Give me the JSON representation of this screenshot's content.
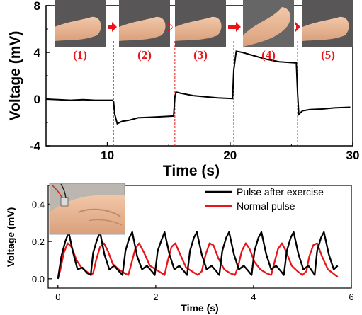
{
  "chart_data": [
    {
      "type": "line",
      "xlabel": "Time (s)",
      "ylabel": "Voltage (mV)",
      "xlim": [
        5,
        30
      ],
      "ylim": [
        -4,
        8
      ],
      "xticks": [
        "10",
        "20",
        "30"
      ],
      "yticks": [
        "-4",
        "0",
        "4",
        "8"
      ],
      "step_labels": [
        "(1)",
        "(2)",
        "(3)",
        "(4)",
        "(5)"
      ],
      "transition_times": [
        10.5,
        15.5,
        20.3,
        25.5
      ],
      "series": [
        {
          "color": "#000000",
          "points": [
            [
              5,
              0
            ],
            [
              6,
              -0.05
            ],
            [
              7,
              -0.1
            ],
            [
              8,
              -0.05
            ],
            [
              9,
              -0.1
            ],
            [
              10.4,
              -0.1
            ],
            [
              10.5,
              -0.2
            ],
            [
              10.6,
              -1.3
            ],
            [
              10.8,
              -2.1
            ],
            [
              11.2,
              -1.9
            ],
            [
              11.8,
              -1.8
            ],
            [
              12.5,
              -1.6
            ],
            [
              13.5,
              -1.55
            ],
            [
              14.5,
              -1.5
            ],
            [
              15.4,
              -1.45
            ],
            [
              15.5,
              0.2
            ],
            [
              15.6,
              0.6
            ],
            [
              16.0,
              0.5
            ],
            [
              17.0,
              0.3
            ],
            [
              18.0,
              0.2
            ],
            [
              19.0,
              0.1
            ],
            [
              20.2,
              0.05
            ],
            [
              20.3,
              2.5
            ],
            [
              20.5,
              4.1
            ],
            [
              21.0,
              4.0
            ],
            [
              22.0,
              3.7
            ],
            [
              23.0,
              3.4
            ],
            [
              24.0,
              3.2
            ],
            [
              25.4,
              3.1
            ],
            [
              25.5,
              0.5
            ],
            [
              25.6,
              -1.3
            ],
            [
              25.9,
              -1.0
            ],
            [
              26.5,
              -0.9
            ],
            [
              27.5,
              -0.85
            ],
            [
              28.5,
              -0.75
            ],
            [
              29.8,
              -0.7
            ]
          ]
        }
      ]
    },
    {
      "type": "line",
      "xlabel": "Time (s)",
      "ylabel": "Voltage (mV)",
      "xlim": [
        -0.2,
        6
      ],
      "ylim": [
        -0.05,
        0.5
      ],
      "xticks": [
        "0",
        "2",
        "4",
        "6"
      ],
      "yticks": [
        "0.0",
        "0.2",
        "0.4"
      ],
      "inset_image": "wrist pulse sensor photo",
      "series": [
        {
          "name": "Pulse after exercise",
          "color": "#000000",
          "points": [
            [
              0,
              0.0
            ],
            [
              0.07,
              0.12
            ],
            [
              0.15,
              0.2
            ],
            [
              0.22,
              0.25
            ],
            [
              0.3,
              0.15
            ],
            [
              0.4,
              0.05
            ],
            [
              0.5,
              0.06
            ],
            [
              0.6,
              0.03
            ],
            [
              0.67,
              0.02
            ],
            [
              0.72,
              0.14
            ],
            [
              0.8,
              0.21
            ],
            [
              0.86,
              0.25
            ],
            [
              0.95,
              0.13
            ],
            [
              1.05,
              0.05
            ],
            [
              1.15,
              0.07
            ],
            [
              1.25,
              0.04
            ],
            [
              1.32,
              0.02
            ],
            [
              1.38,
              0.15
            ],
            [
              1.46,
              0.22
            ],
            [
              1.52,
              0.25
            ],
            [
              1.62,
              0.12
            ],
            [
              1.72,
              0.05
            ],
            [
              1.82,
              0.07
            ],
            [
              1.92,
              0.04
            ],
            [
              1.98,
              0.02
            ],
            [
              2.04,
              0.15
            ],
            [
              2.12,
              0.21
            ],
            [
              2.18,
              0.25
            ],
            [
              2.28,
              0.13
            ],
            [
              2.38,
              0.05
            ],
            [
              2.48,
              0.07
            ],
            [
              2.58,
              0.04
            ],
            [
              2.64,
              0.02
            ],
            [
              2.7,
              0.15
            ],
            [
              2.78,
              0.22
            ],
            [
              2.84,
              0.25
            ],
            [
              2.94,
              0.13
            ],
            [
              3.04,
              0.05
            ],
            [
              3.14,
              0.07
            ],
            [
              3.24,
              0.04
            ],
            [
              3.3,
              0.02
            ],
            [
              3.36,
              0.15
            ],
            [
              3.44,
              0.22
            ],
            [
              3.5,
              0.25
            ],
            [
              3.6,
              0.13
            ],
            [
              3.7,
              0.05
            ],
            [
              3.8,
              0.07
            ],
            [
              3.9,
              0.04
            ],
            [
              3.96,
              0.02
            ],
            [
              4.02,
              0.15
            ],
            [
              4.1,
              0.22
            ],
            [
              4.16,
              0.25
            ],
            [
              4.26,
              0.13
            ],
            [
              4.36,
              0.05
            ],
            [
              4.46,
              0.07
            ],
            [
              4.56,
              0.04
            ],
            [
              4.62,
              0.02
            ],
            [
              4.68,
              0.15
            ],
            [
              4.76,
              0.22
            ],
            [
              4.82,
              0.25
            ],
            [
              4.92,
              0.13
            ],
            [
              5.02,
              0.05
            ],
            [
              5.12,
              0.07
            ],
            [
              5.2,
              0.04
            ],
            [
              5.25,
              0.02
            ],
            [
              5.3,
              0.15
            ],
            [
              5.38,
              0.22
            ],
            [
              5.44,
              0.25
            ],
            [
              5.54,
              0.13
            ],
            [
              5.64,
              0.05
            ],
            [
              5.72,
              0.07
            ]
          ]
        },
        {
          "name": "Normal pulse",
          "color": "#e8161b",
          "points": [
            [
              0,
              0.0
            ],
            [
              0.05,
              0.05
            ],
            [
              0.12,
              0.14
            ],
            [
              0.2,
              0.19
            ],
            [
              0.28,
              0.17
            ],
            [
              0.38,
              0.1
            ],
            [
              0.48,
              0.06
            ],
            [
              0.58,
              0.04
            ],
            [
              0.68,
              0.02
            ],
            [
              0.72,
              0.03
            ],
            [
              0.78,
              0.1
            ],
            [
              0.86,
              0.17
            ],
            [
              0.94,
              0.19
            ],
            [
              1.02,
              0.15
            ],
            [
              1.12,
              0.08
            ],
            [
              1.24,
              0.05
            ],
            [
              1.36,
              0.03
            ],
            [
              1.44,
              0.02
            ],
            [
              1.5,
              0.08
            ],
            [
              1.58,
              0.16
            ],
            [
              1.66,
              0.19
            ],
            [
              1.76,
              0.14
            ],
            [
              1.88,
              0.07
            ],
            [
              2.0,
              0.05
            ],
            [
              2.12,
              0.03
            ],
            [
              2.18,
              0.02
            ],
            [
              2.24,
              0.09
            ],
            [
              2.32,
              0.17
            ],
            [
              2.4,
              0.19
            ],
            [
              2.5,
              0.13
            ],
            [
              2.62,
              0.06
            ],
            [
              2.74,
              0.04
            ],
            [
              2.86,
              0.02
            ],
            [
              2.94,
              0.04
            ],
            [
              3.02,
              0.13
            ],
            [
              3.1,
              0.19
            ],
            [
              3.18,
              0.18
            ],
            [
              3.28,
              0.11
            ],
            [
              3.4,
              0.05
            ],
            [
              3.52,
              0.03
            ],
            [
              3.62,
              0.02
            ],
            [
              3.68,
              0.06
            ],
            [
              3.76,
              0.15
            ],
            [
              3.84,
              0.19
            ],
            [
              3.92,
              0.16
            ],
            [
              4.02,
              0.09
            ],
            [
              4.14,
              0.05
            ],
            [
              4.26,
              0.03
            ],
            [
              4.36,
              0.02
            ],
            [
              4.42,
              0.08
            ],
            [
              4.5,
              0.16
            ],
            [
              4.58,
              0.19
            ],
            [
              4.66,
              0.15
            ],
            [
              4.78,
              0.07
            ],
            [
              4.9,
              0.04
            ],
            [
              5.0,
              0.02
            ],
            [
              5.08,
              0.04
            ],
            [
              5.14,
              0.12
            ],
            [
              5.22,
              0.18
            ],
            [
              5.3,
              0.19
            ],
            [
              5.4,
              0.12
            ],
            [
              5.52,
              0.05
            ],
            [
              5.62,
              0.03
            ],
            [
              5.72,
              0.01
            ]
          ]
        }
      ]
    }
  ]
}
